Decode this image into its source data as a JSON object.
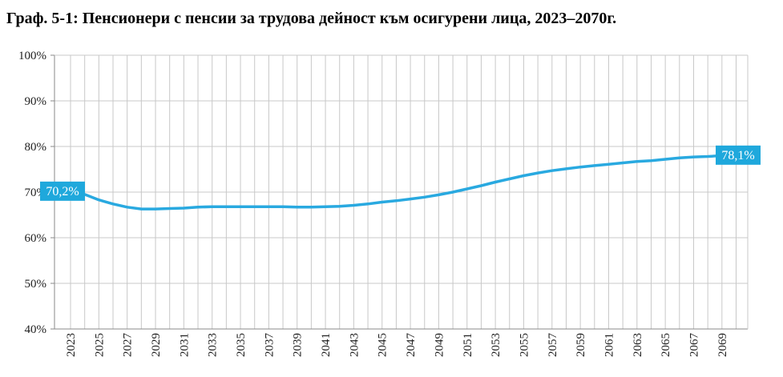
{
  "chart_data": {
    "type": "line",
    "title": "Граф. 5-1:   Пенсионери с пенсии за трудова дейност към осигурени лица, 2023–2070г.",
    "xlabel": "",
    "ylabel": "",
    "ylim": [
      40,
      100
    ],
    "y_ticks": [
      "40%",
      "50%",
      "60%",
      "70%",
      "80%",
      "90%",
      "100%"
    ],
    "x_tick_labels": [
      "2023",
      "2025",
      "2027",
      "2029",
      "2031",
      "2033",
      "2035",
      "2037",
      "2039",
      "2041",
      "2043",
      "2045",
      "2047",
      "2049",
      "2051",
      "2053",
      "2055",
      "2057",
      "2059",
      "2061",
      "2063",
      "2065",
      "2067",
      "2069"
    ],
    "grid": true,
    "colors": {
      "line": "#29a9e0",
      "label_bg": "#1fa8dc",
      "grid": "#c8c8c8",
      "axis": "#8a8a8a"
    },
    "series": [
      {
        "x": [
          2023,
          2024,
          2025,
          2026,
          2027,
          2028,
          2029,
          2030,
          2031,
          2032,
          2033,
          2034,
          2035,
          2036,
          2037,
          2038,
          2039,
          2040,
          2041,
          2042,
          2043,
          2044,
          2045,
          2046,
          2047,
          2048,
          2049,
          2050,
          2051,
          2052,
          2053,
          2054,
          2055,
          2056,
          2057,
          2058,
          2059,
          2060,
          2061,
          2062,
          2063,
          2064,
          2065,
          2066,
          2067,
          2068,
          2069,
          2070
        ],
        "values": [
          70.2,
          69.5,
          68.3,
          67.4,
          66.7,
          66.3,
          66.3,
          66.4,
          66.5,
          66.7,
          66.8,
          66.8,
          66.8,
          66.8,
          66.8,
          66.8,
          66.7,
          66.7,
          66.8,
          66.9,
          67.1,
          67.4,
          67.8,
          68.1,
          68.5,
          68.9,
          69.4,
          70.0,
          70.7,
          71.4,
          72.2,
          72.9,
          73.6,
          74.2,
          74.7,
          75.1,
          75.5,
          75.8,
          76.1,
          76.4,
          76.7,
          76.9,
          77.2,
          77.5,
          77.7,
          77.8,
          78.0,
          78.1
        ]
      }
    ],
    "data_labels": [
      {
        "x": 2023,
        "text": "70,2%"
      },
      {
        "x": 2070,
        "text": "78,1%"
      }
    ]
  }
}
